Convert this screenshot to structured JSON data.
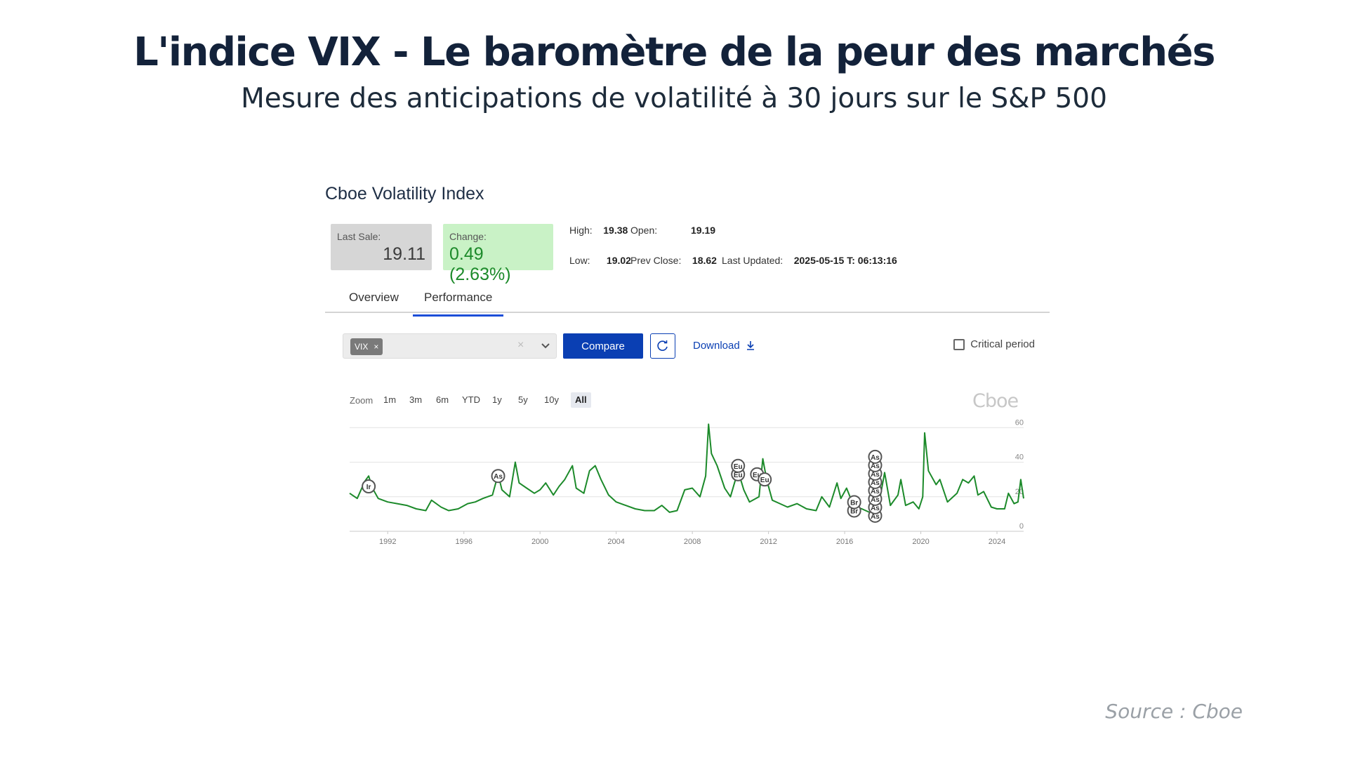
{
  "slide": {
    "title": "L'indice VIX - Le baromètre de la peur des marchés",
    "subtitle": "Mesure des anticipations de volatilité à 30 jours sur le S&P 500",
    "source": "Source : Cboe"
  },
  "widget": {
    "title": "Cboe Volatility Index",
    "last_sale": {
      "label": "Last Sale:",
      "value": "19.11"
    },
    "change": {
      "label": "Change:",
      "value": "0.49 (2.63%)"
    },
    "stats": {
      "high_label": "High:",
      "high": "19.38",
      "open_label": "Open:",
      "open": "19.19",
      "low_label": "Low:",
      "low": "19.02",
      "prev_close_label": "Prev Close:",
      "prev_close": "18.62",
      "last_updated_label": "Last Updated:",
      "last_updated": "2025-05-15 T: 06:13:16"
    },
    "tabs": [
      {
        "label": "Overview",
        "active": false
      },
      {
        "label": "Performance",
        "active": true
      }
    ],
    "controls": {
      "chip": "VIX",
      "chip_remove": "×",
      "clear": "×",
      "compare_label": "Compare",
      "download_label": "Download",
      "critical_label": "Critical period"
    },
    "zoom": {
      "label": "Zoom",
      "options": [
        "1m",
        "3m",
        "6m",
        "YTD",
        "1y",
        "5y",
        "10y",
        "All"
      ],
      "active": "All"
    },
    "logo": "Cboe"
  },
  "colors": {
    "accent": "#0a3fb3",
    "line": "#1c8a2a",
    "positive_bg": "#c9f2c6"
  },
  "chart_data": {
    "type": "line",
    "title": "",
    "xlabel": "",
    "ylabel": "",
    "xlim": [
      1990,
      2025.4
    ],
    "ylim": [
      0,
      65
    ],
    "x_ticks": [
      "1992",
      "1996",
      "2000",
      "2004",
      "2008",
      "2012",
      "2016",
      "2020",
      "2024"
    ],
    "y_ticks": [
      "0",
      "20",
      "40",
      "60"
    ],
    "grid": true,
    "series": [
      {
        "values": [
          [
            1990.0,
            22
          ],
          [
            1990.4,
            19
          ],
          [
            1990.8,
            29
          ],
          [
            1991.0,
            32
          ],
          [
            1991.2,
            25
          ],
          [
            1991.5,
            19
          ],
          [
            1992.0,
            17
          ],
          [
            1992.5,
            16
          ],
          [
            1993.0,
            15
          ],
          [
            1993.5,
            13
          ],
          [
            1994.0,
            12
          ],
          [
            1994.3,
            18
          ],
          [
            1994.8,
            14
          ],
          [
            1995.2,
            12
          ],
          [
            1995.7,
            13
          ],
          [
            1996.2,
            16
          ],
          [
            1996.6,
            17
          ],
          [
            1997.0,
            19
          ],
          [
            1997.5,
            21
          ],
          [
            1997.8,
            33
          ],
          [
            1998.0,
            24
          ],
          [
            1998.4,
            20
          ],
          [
            1998.7,
            40
          ],
          [
            1998.9,
            28
          ],
          [
            1999.3,
            25
          ],
          [
            1999.7,
            22
          ],
          [
            2000.0,
            24
          ],
          [
            2000.3,
            28
          ],
          [
            2000.7,
            21
          ],
          [
            2001.0,
            26
          ],
          [
            2001.3,
            30
          ],
          [
            2001.7,
            38
          ],
          [
            2001.9,
            25
          ],
          [
            2002.3,
            22
          ],
          [
            2002.6,
            35
          ],
          [
            2002.9,
            38
          ],
          [
            2003.2,
            30
          ],
          [
            2003.6,
            21
          ],
          [
            2004.0,
            17
          ],
          [
            2004.5,
            15
          ],
          [
            2005.0,
            13
          ],
          [
            2005.5,
            12
          ],
          [
            2006.0,
            12
          ],
          [
            2006.4,
            15
          ],
          [
            2006.8,
            11
          ],
          [
            2007.2,
            12
          ],
          [
            2007.6,
            24
          ],
          [
            2008.0,
            25
          ],
          [
            2008.4,
            20
          ],
          [
            2008.7,
            32
          ],
          [
            2008.85,
            62
          ],
          [
            2009.0,
            45
          ],
          [
            2009.3,
            38
          ],
          [
            2009.7,
            25
          ],
          [
            2010.0,
            20
          ],
          [
            2010.4,
            35
          ],
          [
            2010.7,
            24
          ],
          [
            2011.0,
            17
          ],
          [
            2011.5,
            20
          ],
          [
            2011.7,
            42
          ],
          [
            2011.9,
            30
          ],
          [
            2012.2,
            18
          ],
          [
            2012.6,
            16
          ],
          [
            2013.0,
            14
          ],
          [
            2013.5,
            16
          ],
          [
            2014.0,
            13
          ],
          [
            2014.5,
            12
          ],
          [
            2014.8,
            20
          ],
          [
            2015.2,
            14
          ],
          [
            2015.6,
            28
          ],
          [
            2015.8,
            19
          ],
          [
            2016.1,
            25
          ],
          [
            2016.5,
            14
          ],
          [
            2016.9,
            13
          ],
          [
            2017.3,
            11
          ],
          [
            2017.7,
            10
          ],
          [
            2018.1,
            34
          ],
          [
            2018.4,
            15
          ],
          [
            2018.8,
            21
          ],
          [
            2018.95,
            30
          ],
          [
            2019.2,
            15
          ],
          [
            2019.6,
            17
          ],
          [
            2019.9,
            13
          ],
          [
            2020.1,
            20
          ],
          [
            2020.2,
            57
          ],
          [
            2020.4,
            35
          ],
          [
            2020.8,
            27
          ],
          [
            2021.0,
            30
          ],
          [
            2021.4,
            17
          ],
          [
            2021.9,
            22
          ],
          [
            2022.2,
            30
          ],
          [
            2022.5,
            28
          ],
          [
            2022.8,
            32
          ],
          [
            2023.0,
            21
          ],
          [
            2023.3,
            23
          ],
          [
            2023.7,
            14
          ],
          [
            2024.0,
            13
          ],
          [
            2024.4,
            13
          ],
          [
            2024.6,
            22
          ],
          [
            2024.9,
            16
          ],
          [
            2025.1,
            17
          ],
          [
            2025.25,
            30
          ],
          [
            2025.4,
            19
          ]
        ]
      }
    ],
    "annotations": [
      {
        "label": "Ir",
        "x": 1991.0
      },
      {
        "label": "As",
        "x": 1997.8
      },
      {
        "label": "Eu",
        "x": 2010.4
      },
      {
        "label": "Eu",
        "x": 2010.4
      },
      {
        "label": "Eu",
        "x": 2011.4
      },
      {
        "label": "Eu",
        "x": 2011.8
      },
      {
        "label": "Br",
        "x": 2016.5
      },
      {
        "label": "Br",
        "x": 2016.5
      },
      {
        "label": "As",
        "x": 2017.6
      },
      {
        "label": "As",
        "x": 2017.6
      },
      {
        "label": "As",
        "x": 2017.6
      },
      {
        "label": "As",
        "x": 2017.6
      },
      {
        "label": "As",
        "x": 2017.6
      },
      {
        "label": "As",
        "x": 2017.6
      },
      {
        "label": "As",
        "x": 2017.6
      },
      {
        "label": "As",
        "x": 2017.6
      }
    ]
  }
}
